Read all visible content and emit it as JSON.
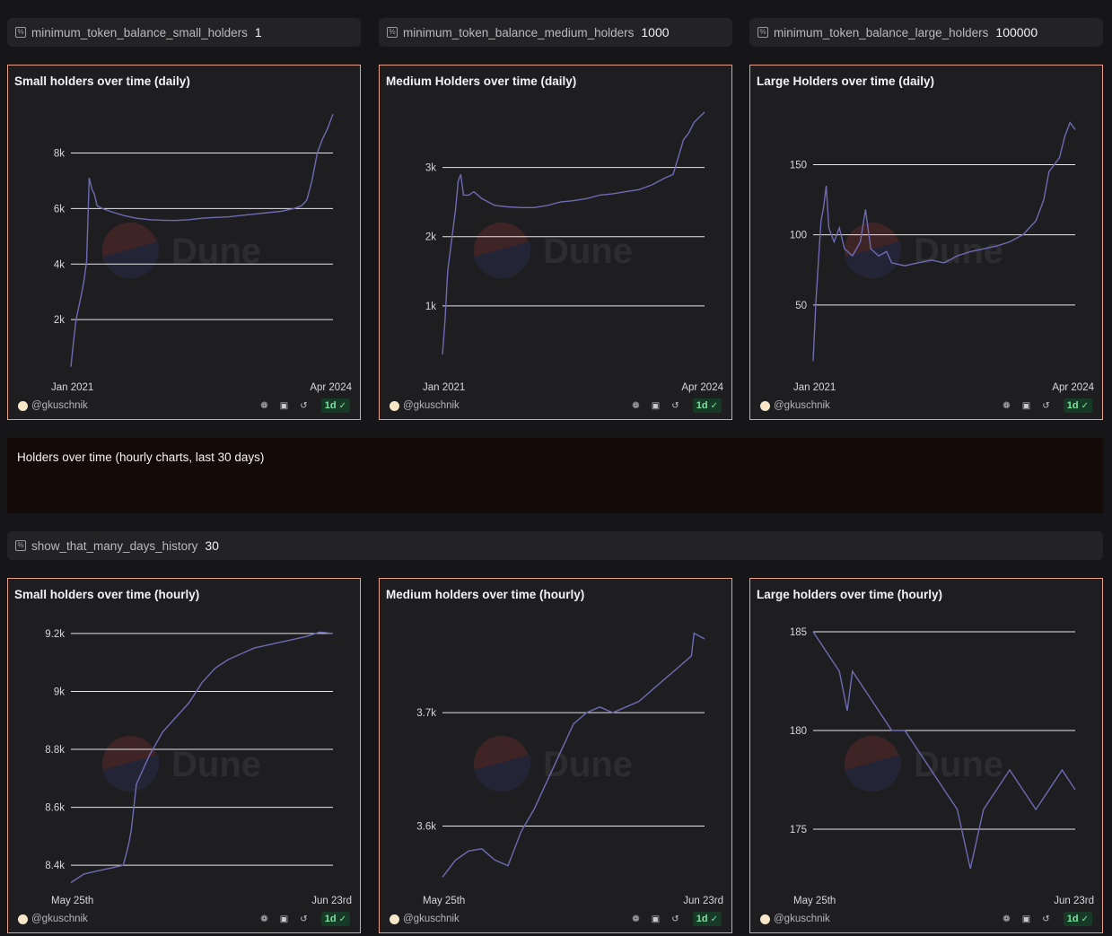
{
  "params": [
    {
      "name": "minimum_token_balance_small_holders",
      "value": "1"
    },
    {
      "name": "minimum_token_balance_medium_holders",
      "value": "1000"
    },
    {
      "name": "minimum_token_balance_large_holders",
      "value": "100000"
    },
    {
      "name": "show_that_many_days_history",
      "value": "30"
    }
  ],
  "param_icon_glyph": "%",
  "watermark": "Dune",
  "author": "@gkuschnik",
  "refresh_badge": "1d",
  "text_block": {
    "title": "Holders over time (hourly charts, last 30 days)"
  },
  "colors": {
    "line": "#6e6ab4",
    "card_border": "#e8a08e",
    "badge_bg": "#173a26",
    "badge_text": "#7fe3a0"
  },
  "cards": [
    {
      "title": "Small holders over time (daily)"
    },
    {
      "title": "Medium Holders over time (daily)"
    },
    {
      "title": "Large Holders over time (daily)"
    },
    {
      "title": "Small holders over time (hourly)"
    },
    {
      "title": "Medium holders over time (hourly)"
    },
    {
      "title": "Large holders over time (hourly)"
    }
  ],
  "chart_data": [
    {
      "type": "line",
      "title": "Small holders over time (daily)",
      "x_tick_labels": [
        "Jan 2021",
        "Apr 2024"
      ],
      "y_ticks": [
        {
          "value": 2000,
          "label": "2k"
        },
        {
          "value": 4000,
          "label": "4k"
        },
        {
          "value": 6000,
          "label": "6k"
        },
        {
          "value": 8000,
          "label": "8k"
        }
      ],
      "ylim": [
        0,
        9600
      ],
      "x": [
        0,
        0.01,
        0.02,
        0.04,
        0.05,
        0.06,
        0.07,
        0.08,
        0.09,
        0.1,
        0.12,
        0.15,
        0.2,
        0.25,
        0.3,
        0.35,
        0.4,
        0.45,
        0.5,
        0.55,
        0.6,
        0.65,
        0.7,
        0.75,
        0.8,
        0.85,
        0.88,
        0.9,
        0.92,
        0.94,
        0.96,
        0.98,
        1.0
      ],
      "values": [
        300,
        1200,
        2000,
        2900,
        3400,
        4100,
        7100,
        6700,
        6500,
        6100,
        6000,
        5900,
        5750,
        5650,
        5600,
        5580,
        5570,
        5600,
        5650,
        5680,
        5700,
        5750,
        5800,
        5850,
        5900,
        6000,
        6100,
        6300,
        7000,
        8000,
        8500,
        8900,
        9400
      ]
    },
    {
      "type": "line",
      "title": "Medium Holders over time (daily)",
      "x_tick_labels": [
        "Jan 2021",
        "Apr 2024"
      ],
      "y_ticks": [
        {
          "value": 1000,
          "label": "1k"
        },
        {
          "value": 2000,
          "label": "2k"
        },
        {
          "value": 3000,
          "label": "3k"
        }
      ],
      "ylim": [
        0,
        3850
      ],
      "x": [
        0,
        0.01,
        0.02,
        0.04,
        0.05,
        0.06,
        0.07,
        0.08,
        0.1,
        0.12,
        0.15,
        0.2,
        0.25,
        0.3,
        0.35,
        0.4,
        0.45,
        0.5,
        0.55,
        0.6,
        0.65,
        0.7,
        0.75,
        0.8,
        0.85,
        0.88,
        0.9,
        0.92,
        0.94,
        0.96,
        1.0
      ],
      "values": [
        300,
        800,
        1500,
        2100,
        2400,
        2800,
        2900,
        2600,
        2600,
        2650,
        2550,
        2450,
        2430,
        2420,
        2420,
        2450,
        2500,
        2520,
        2550,
        2600,
        2620,
        2650,
        2680,
        2750,
        2850,
        2900,
        3150,
        3400,
        3500,
        3650,
        3800
      ]
    },
    {
      "type": "line",
      "title": "Large Holders over time (daily)",
      "x_tick_labels": [
        "Jan 2021",
        "Apr 2024"
      ],
      "y_ticks": [
        {
          "value": 50,
          "label": "50"
        },
        {
          "value": 100,
          "label": "100"
        },
        {
          "value": 150,
          "label": "150"
        }
      ],
      "ylim": [
        0,
        190
      ],
      "x": [
        0,
        0.01,
        0.02,
        0.03,
        0.04,
        0.05,
        0.06,
        0.07,
        0.08,
        0.1,
        0.12,
        0.15,
        0.18,
        0.2,
        0.22,
        0.25,
        0.28,
        0.3,
        0.35,
        0.4,
        0.45,
        0.5,
        0.55,
        0.6,
        0.65,
        0.7,
        0.75,
        0.8,
        0.85,
        0.88,
        0.9,
        0.92,
        0.94,
        0.96,
        0.98,
        1.0
      ],
      "values": [
        10,
        50,
        80,
        110,
        120,
        135,
        105,
        100,
        95,
        105,
        90,
        85,
        95,
        118,
        90,
        85,
        88,
        80,
        78,
        80,
        82,
        80,
        85,
        88,
        90,
        92,
        95,
        100,
        110,
        125,
        145,
        150,
        155,
        170,
        180,
        175
      ]
    },
    {
      "type": "line",
      "title": "Small holders over time (hourly)",
      "x_tick_labels": [
        "May 25th",
        "Jun 23rd"
      ],
      "y_ticks": [
        {
          "value": 8400,
          "label": "8.4k"
        },
        {
          "value": 8600,
          "label": "8.6k"
        },
        {
          "value": 8800,
          "label": "8.8k"
        },
        {
          "value": 9000,
          "label": "9k"
        },
        {
          "value": 9200,
          "label": "9.2k"
        }
      ],
      "ylim": [
        8320,
        9240
      ],
      "x": [
        0,
        0.05,
        0.1,
        0.15,
        0.2,
        0.22,
        0.23,
        0.25,
        0.27,
        0.3,
        0.35,
        0.4,
        0.45,
        0.5,
        0.55,
        0.6,
        0.65,
        0.7,
        0.75,
        0.8,
        0.85,
        0.9,
        0.95,
        1.0
      ],
      "values": [
        8340,
        8370,
        8380,
        8390,
        8400,
        8470,
        8520,
        8680,
        8720,
        8780,
        8860,
        8910,
        8960,
        9030,
        9080,
        9110,
        9130,
        9150,
        9160,
        9170,
        9180,
        9190,
        9205,
        9200
      ]
    },
    {
      "type": "line",
      "title": "Medium holders over time (hourly)",
      "x_tick_labels": [
        "May 25th",
        "Jun 23rd"
      ],
      "y_ticks": [
        {
          "value": 3600,
          "label": "3.6k"
        },
        {
          "value": 3700,
          "label": "3.7k"
        }
      ],
      "ylim": [
        3545,
        3780
      ],
      "x": [
        0,
        0.05,
        0.1,
        0.15,
        0.2,
        0.25,
        0.3,
        0.35,
        0.4,
        0.45,
        0.5,
        0.55,
        0.6,
        0.65,
        0.7,
        0.75,
        0.8,
        0.85,
        0.9,
        0.95,
        0.96,
        1.0
      ],
      "values": [
        3555,
        3570,
        3578,
        3580,
        3570,
        3565,
        3595,
        3615,
        3640,
        3665,
        3690,
        3700,
        3705,
        3700,
        3705,
        3710,
        3720,
        3730,
        3740,
        3750,
        3770,
        3765
      ]
    },
    {
      "type": "line",
      "title": "Large holders over time (hourly)",
      "x_tick_labels": [
        "May 25th",
        "Jun 23rd"
      ],
      "y_ticks": [
        {
          "value": 175,
          "label": "175"
        },
        {
          "value": 180,
          "label": "180"
        },
        {
          "value": 185,
          "label": "185"
        }
      ],
      "ylim": [
        172,
        185.5
      ],
      "x": [
        0,
        0.05,
        0.1,
        0.13,
        0.15,
        0.2,
        0.25,
        0.3,
        0.35,
        0.4,
        0.45,
        0.5,
        0.55,
        0.6,
        0.65,
        0.7,
        0.75,
        0.8,
        0.85,
        0.9,
        0.95,
        1.0
      ],
      "values": [
        185,
        184,
        183,
        181,
        183,
        182,
        181,
        180,
        180,
        179,
        178,
        177,
        176,
        173,
        176,
        177,
        178,
        177,
        176,
        177,
        178,
        177
      ]
    }
  ]
}
